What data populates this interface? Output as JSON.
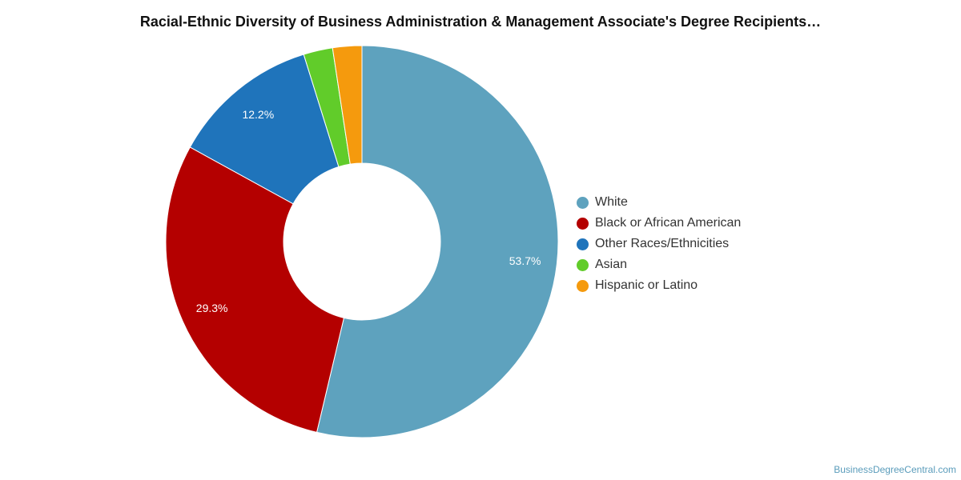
{
  "title": "Racial-Ethnic Diversity of Business Administration & Management Associate's Degree Recipients…",
  "watermark": "BusinessDegreeCentral.com",
  "chart_data": {
    "type": "pie",
    "donut": true,
    "legend_position": "right",
    "start_angle_deg": 0,
    "direction": "clockwise",
    "slices": [
      {
        "label": "White",
        "value": 53.7,
        "color": "#5ea2be",
        "label_text": "53.7%"
      },
      {
        "label": "Black or African American",
        "value": 29.3,
        "color": "#b40000",
        "label_text": "29.3%"
      },
      {
        "label": "Other Races/Ethnicities",
        "value": 12.2,
        "color": "#1f74bb",
        "label_text": "12.2%"
      },
      {
        "label": "Asian",
        "value": 2.4,
        "color": "#61cc2a",
        "label_text": ""
      },
      {
        "label": "Hispanic or Latino",
        "value": 2.4,
        "color": "#f59a0d",
        "label_text": ""
      }
    ]
  }
}
